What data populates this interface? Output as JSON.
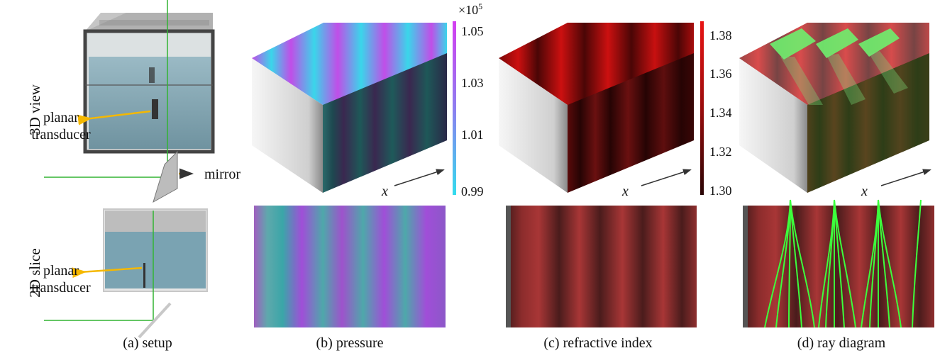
{
  "row_labels": {
    "top": "3D view",
    "bottom": "2D slice"
  },
  "setup": {
    "transducer_line1": "planar",
    "transducer_line2": "transducer",
    "mirror": "mirror"
  },
  "captions": {
    "a": "(a) setup",
    "b": "(b) pressure",
    "c": "(c) refractive index",
    "d": "(d) ray diagram"
  },
  "axis_x": "x",
  "pressure_colorbar": {
    "exponent": "×10",
    "exponent_power": "5",
    "ticks": [
      "1.05",
      "1.03",
      "1.01",
      "0.99"
    ],
    "colors": {
      "high": "#d43ef0",
      "low": "#33dced"
    }
  },
  "refractive_colorbar": {
    "ticks": [
      "1.38",
      "1.36",
      "1.34",
      "1.32",
      "1.30"
    ],
    "colors": {
      "high": "#e81414",
      "low": "#2a0505"
    }
  },
  "colors": {
    "water": "#7aa3b2",
    "tank_edge": "#444444",
    "laser": "#32b432",
    "arrow": "#f5b800",
    "ray": "#3cff3c",
    "red_field": "#8a2a2a"
  }
}
